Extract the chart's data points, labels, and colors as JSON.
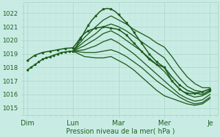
{
  "xlabel": "Pression niveau de la mer( hPa )",
  "bg_color": "#c8ece4",
  "grid_major_color": "#b0d8cc",
  "grid_minor_color": "#c0e0d8",
  "line_color": "#1e5e1e",
  "ylim": [
    1014.5,
    1022.8
  ],
  "yticks": [
    1015,
    1016,
    1017,
    1018,
    1019,
    1020,
    1021,
    1022
  ],
  "day_labels": [
    "Dim",
    "Lun",
    "Mar",
    "Mer",
    "Je"
  ],
  "day_positions": [
    0,
    24,
    48,
    72,
    96
  ],
  "xlim": [
    -2,
    100
  ],
  "lines": [
    {
      "x": [
        0,
        1,
        2,
        3,
        4,
        5,
        6,
        7,
        8,
        9,
        10,
        11,
        12,
        13,
        14,
        15,
        16,
        17,
        18,
        19,
        20,
        21,
        22,
        23,
        24,
        26,
        28,
        30,
        32,
        34,
        36,
        38,
        40,
        42,
        44,
        46,
        48,
        50,
        52,
        54,
        56,
        58,
        60,
        62,
        64,
        66,
        68,
        70,
        72,
        74,
        76,
        78,
        80,
        82,
        84,
        86,
        88,
        90,
        92,
        94,
        96
      ],
      "y": [
        1017.8,
        1017.9,
        1018.0,
        1018.1,
        1018.2,
        1018.3,
        1018.4,
        1018.5,
        1018.6,
        1018.65,
        1018.7,
        1018.75,
        1018.8,
        1018.85,
        1018.9,
        1018.95,
        1019.0,
        1019.05,
        1019.1,
        1019.12,
        1019.14,
        1019.16,
        1019.18,
        1019.19,
        1019.2,
        1019.6,
        1020.1,
        1020.6,
        1021.1,
        1021.5,
        1021.8,
        1022.1,
        1022.3,
        1022.35,
        1022.3,
        1022.15,
        1021.9,
        1021.6,
        1021.3,
        1021.0,
        1020.6,
        1020.2,
        1019.8,
        1019.4,
        1019.0,
        1018.7,
        1018.4,
        1018.2,
        1018.0,
        1017.5,
        1017.0,
        1016.7,
        1016.4,
        1016.2,
        1016.1,
        1016.05,
        1016.1,
        1016.15,
        1016.2,
        1016.3,
        1016.4
      ],
      "marker": true,
      "lw": 1.2,
      "ms": 2.0
    },
    {
      "x": [
        24,
        30,
        36,
        40,
        44,
        48,
        52,
        56,
        60,
        64,
        68,
        72,
        76,
        80,
        84,
        88,
        92,
        96
      ],
      "y": [
        1019.2,
        1020.2,
        1021.0,
        1021.5,
        1021.8,
        1021.5,
        1021.2,
        1020.8,
        1020.5,
        1020.2,
        1019.8,
        1019.5,
        1018.8,
        1018.0,
        1017.3,
        1016.8,
        1016.5,
        1016.5
      ],
      "marker": false,
      "lw": 1.0
    },
    {
      "x": [
        24,
        30,
        36,
        40,
        44,
        48,
        52,
        56,
        60,
        64,
        68,
        72,
        76,
        80,
        84,
        88,
        92,
        96
      ],
      "y": [
        1019.2,
        1019.9,
        1020.5,
        1021.0,
        1021.2,
        1021.0,
        1020.7,
        1020.3,
        1019.9,
        1019.5,
        1019.1,
        1018.7,
        1017.9,
        1017.2,
        1016.6,
        1016.3,
        1016.2,
        1016.4
      ],
      "marker": false,
      "lw": 1.0
    },
    {
      "x": [
        24,
        30,
        36,
        40,
        44,
        48,
        52,
        56,
        60,
        64,
        68,
        72,
        76,
        80,
        84,
        88,
        92,
        96
      ],
      "y": [
        1019.2,
        1019.6,
        1020.1,
        1020.5,
        1020.7,
        1020.4,
        1020.0,
        1019.6,
        1019.2,
        1018.7,
        1018.2,
        1017.7,
        1017.0,
        1016.4,
        1016.0,
        1015.8,
        1015.9,
        1016.2
      ],
      "marker": false,
      "lw": 1.0
    },
    {
      "x": [
        24,
        30,
        36,
        40,
        44,
        48,
        52,
        56,
        60,
        64,
        68,
        72,
        76,
        80,
        84,
        88,
        92,
        96
      ],
      "y": [
        1019.2,
        1019.3,
        1019.6,
        1019.9,
        1020.1,
        1019.8,
        1019.4,
        1019.0,
        1018.5,
        1018.0,
        1017.5,
        1017.0,
        1016.5,
        1016.0,
        1015.7,
        1015.5,
        1015.6,
        1016.0
      ],
      "marker": false,
      "lw": 1.0
    },
    {
      "x": [
        24,
        30,
        36,
        40,
        44,
        48,
        52,
        56,
        60,
        64,
        68,
        72,
        76,
        80,
        84,
        88,
        92,
        96
      ],
      "y": [
        1019.2,
        1019.1,
        1019.1,
        1019.2,
        1019.3,
        1019.1,
        1018.8,
        1018.4,
        1018.0,
        1017.5,
        1017.0,
        1016.6,
        1016.2,
        1015.8,
        1015.5,
        1015.3,
        1015.4,
        1015.8
      ],
      "marker": false,
      "lw": 1.0
    },
    {
      "x": [
        24,
        30,
        36,
        40,
        44,
        48,
        52,
        56,
        60,
        64,
        68,
        72,
        76,
        80,
        84,
        88,
        92,
        96
      ],
      "y": [
        1019.2,
        1018.8,
        1018.7,
        1018.7,
        1018.8,
        1018.5,
        1018.2,
        1017.8,
        1017.3,
        1016.8,
        1016.3,
        1015.9,
        1015.7,
        1015.5,
        1015.3,
        1015.2,
        1015.3,
        1015.7
      ],
      "marker": false,
      "lw": 1.0
    },
    {
      "x": [
        0,
        2,
        4,
        6,
        8,
        10,
        12,
        14,
        16,
        18,
        20,
        22,
        24,
        26,
        28,
        30,
        32,
        34,
        36,
        38,
        40,
        42,
        44,
        46,
        48,
        50,
        52,
        54,
        56,
        58,
        60,
        62,
        64,
        66,
        68,
        70,
        72,
        76,
        80,
        84,
        88,
        92,
        96
      ],
      "y": [
        1018.5,
        1018.7,
        1018.9,
        1019.0,
        1019.1,
        1019.15,
        1019.2,
        1019.25,
        1019.3,
        1019.35,
        1019.4,
        1019.42,
        1019.45,
        1019.8,
        1020.2,
        1020.5,
        1020.7,
        1020.8,
        1020.9,
        1020.95,
        1021.0,
        1020.95,
        1020.9,
        1020.85,
        1020.8,
        1020.6,
        1020.4,
        1020.1,
        1019.8,
        1019.5,
        1019.2,
        1018.9,
        1018.6,
        1018.4,
        1018.2,
        1018.1,
        1018.0,
        1017.3,
        1016.7,
        1016.3,
        1016.1,
        1016.0,
        1016.3
      ],
      "marker": true,
      "lw": 1.2,
      "ms": 2.0
    }
  ]
}
